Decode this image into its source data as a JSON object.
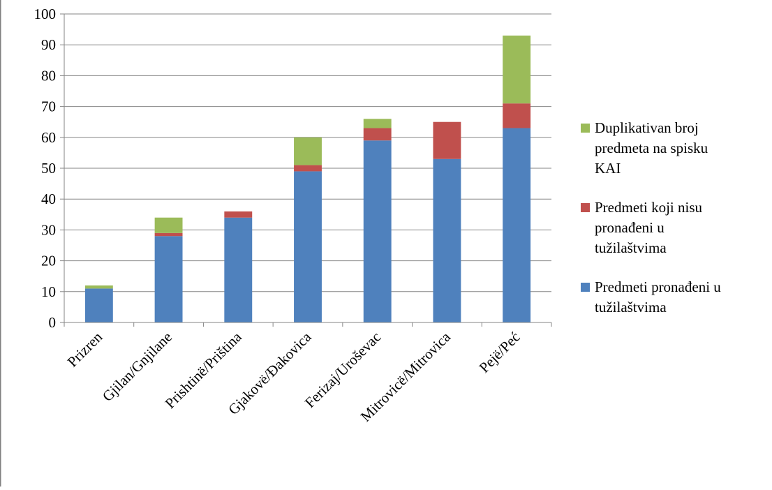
{
  "chart_data": {
    "type": "bar",
    "stacked": true,
    "categories": [
      "Prizren",
      "Gjilan/Gnjilane",
      "Prishtinë/Priština",
      "Gjakovë/Đakovica",
      "Ferizaj/Uroševac",
      "Mitrovicë/Mitrovica",
      "Pejë/Peć"
    ],
    "series": [
      {
        "name": "Predmeti pronađeni u tužilaštvima",
        "color": "#4F81BD",
        "values": [
          11,
          28,
          34,
          49,
          59,
          53,
          63
        ]
      },
      {
        "name": "Predmeti koji nisu pronađeni u tužilaštvima",
        "color": "#C0504D",
        "values": [
          0,
          1,
          2,
          2,
          4,
          12,
          8
        ]
      },
      {
        "name": "Duplikativan broj predmeta na spisku KAI",
        "color": "#9BBB59",
        "values": [
          1,
          5,
          0,
          9,
          3,
          0,
          22
        ]
      }
    ],
    "ylim": [
      0,
      100
    ],
    "yticks": [
      0,
      10,
      20,
      30,
      40,
      50,
      60,
      70,
      80,
      90,
      100
    ],
    "grid": true,
    "legend": {
      "placement": "right",
      "entries": [
        {
          "series": 2,
          "lines": [
            "Duplikativan broj",
            "predmeta na spisku",
            "KAI"
          ]
        },
        {
          "series": 1,
          "lines": [
            "Predmeti koji nisu",
            "pronađeni u",
            "tužilaštvima"
          ]
        },
        {
          "series": 0,
          "lines": [
            "Predmeti pronađeni u",
            "tužilaštvima"
          ]
        }
      ]
    },
    "title": "",
    "xlabel": "",
    "ylabel": ""
  }
}
